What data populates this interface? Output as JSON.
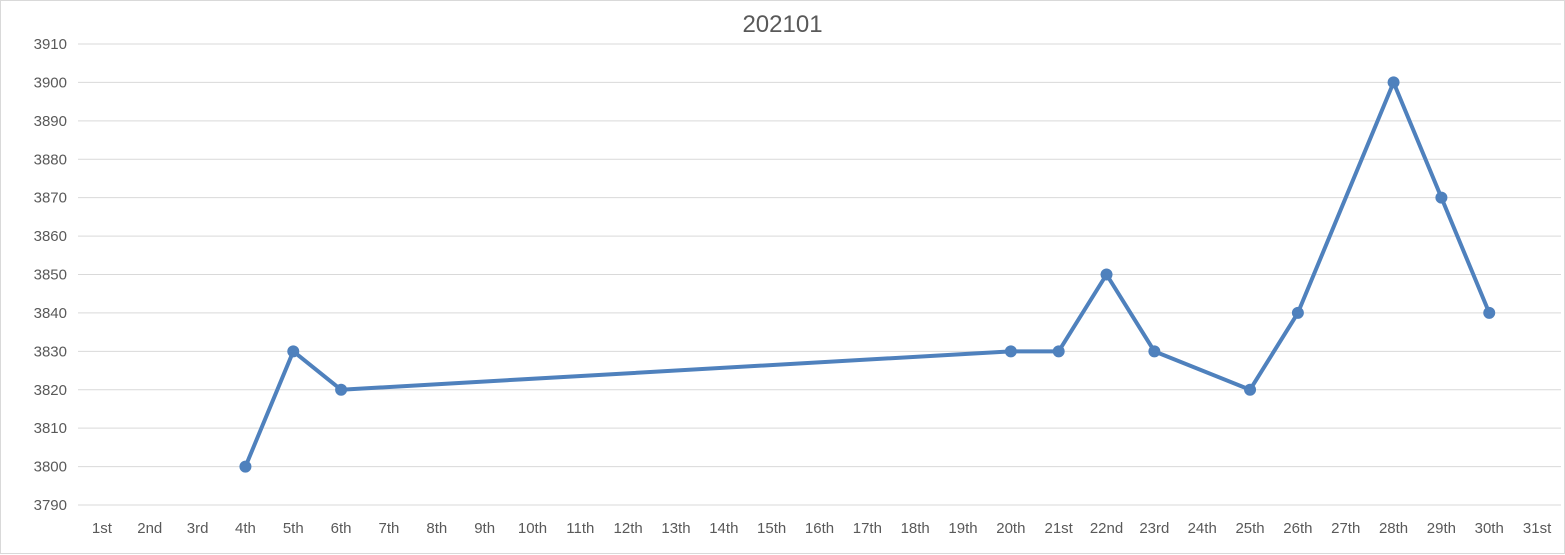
{
  "chart_data": {
    "type": "line",
    "title": "202101",
    "xlabel": "",
    "ylabel": "",
    "categories": [
      "1st",
      "2nd",
      "3rd",
      "4th",
      "5th",
      "6th",
      "7th",
      "8th",
      "9th",
      "10th",
      "11th",
      "12th",
      "13th",
      "14th",
      "15th",
      "16th",
      "17th",
      "18th",
      "19th",
      "20th",
      "21st",
      "22nd",
      "23rd",
      "24th",
      "25th",
      "26th",
      "27th",
      "28th",
      "29th",
      "30th",
      "31st"
    ],
    "yticks": [
      3790,
      3800,
      3810,
      3820,
      3830,
      3840,
      3850,
      3860,
      3870,
      3880,
      3890,
      3900,
      3910
    ],
    "ylim": [
      3790,
      3910
    ],
    "grid": true,
    "legend": "none",
    "series": [
      {
        "color": "#4f81bd",
        "points": [
          {
            "x": "4th",
            "y": 3800
          },
          {
            "x": "5th",
            "y": 3830
          },
          {
            "x": "6th",
            "y": 3820
          },
          {
            "x": "20th",
            "y": 3830
          },
          {
            "x": "21st",
            "y": 3830
          },
          {
            "x": "22nd",
            "y": 3850
          },
          {
            "x": "23rd",
            "y": 3830
          },
          {
            "x": "25th",
            "y": 3820
          },
          {
            "x": "26th",
            "y": 3840
          },
          {
            "x": "28th",
            "y": 3900
          },
          {
            "x": "29th",
            "y": 3870
          },
          {
            "x": "30th",
            "y": 3840
          }
        ]
      }
    ],
    "gridline_color": "#d9d9d9"
  }
}
